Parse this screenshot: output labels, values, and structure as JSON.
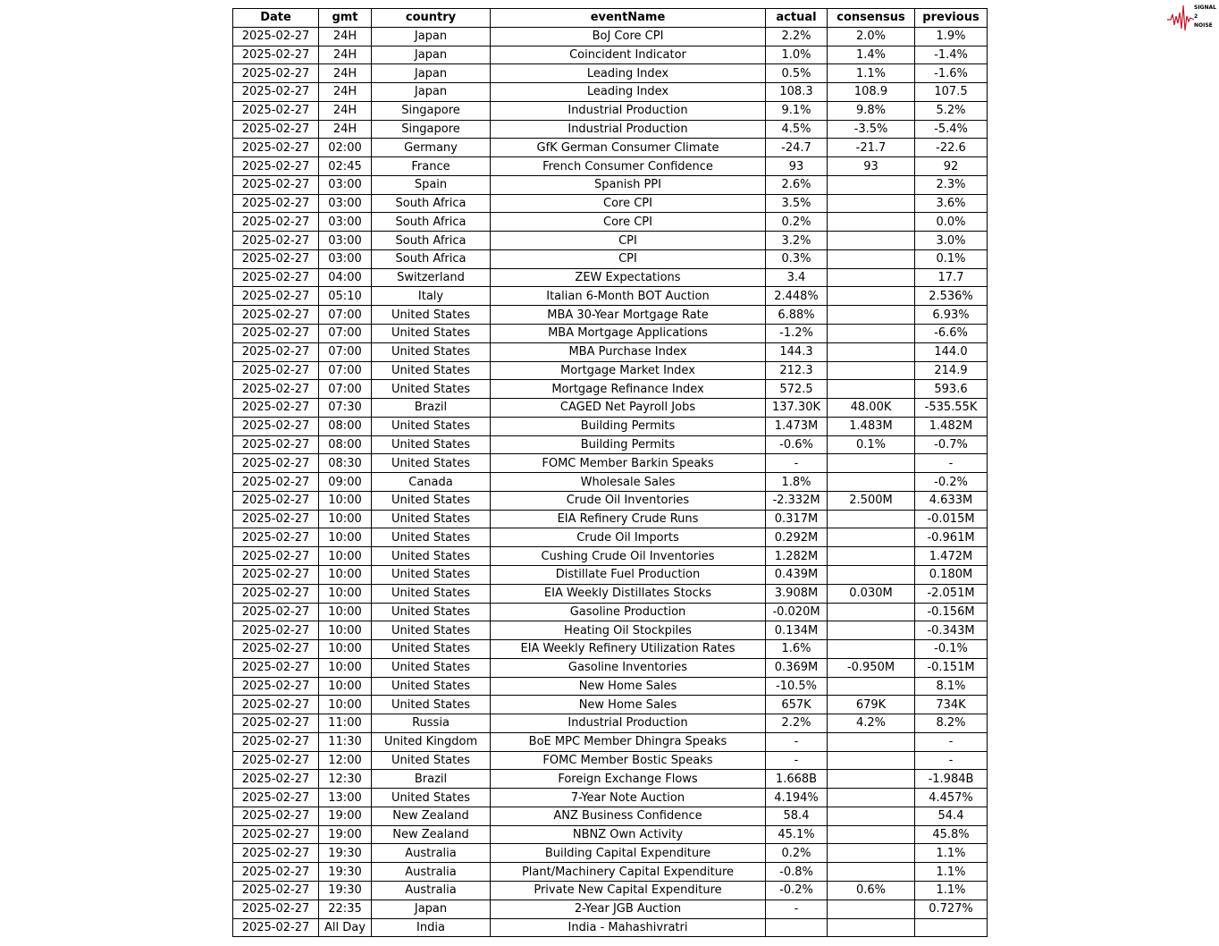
{
  "logo": {
    "text": "SIGNAL 2 NOISE",
    "color": "#c0182a"
  },
  "table": {
    "headers": [
      "Date",
      "gmt",
      "country",
      "eventName",
      "actual",
      "consensus",
      "previous"
    ],
    "rows": [
      [
        "2025-02-27",
        "24H",
        "Japan",
        "BoJ Core CPI",
        "2.2%",
        "2.0%",
        "1.9%"
      ],
      [
        "2025-02-27",
        "24H",
        "Japan",
        "Coincident Indicator",
        "1.0%",
        "1.4%",
        "-1.4%"
      ],
      [
        "2025-02-27",
        "24H",
        "Japan",
        "Leading Index",
        "0.5%",
        "1.1%",
        "-1.6%"
      ],
      [
        "2025-02-27",
        "24H",
        "Japan",
        "Leading Index",
        "108.3",
        "108.9",
        "107.5"
      ],
      [
        "2025-02-27",
        "24H",
        "Singapore",
        "Industrial Production",
        "9.1%",
        "9.8%",
        "5.2%"
      ],
      [
        "2025-02-27",
        "24H",
        "Singapore",
        "Industrial Production",
        "4.5%",
        "-3.5%",
        "-5.4%"
      ],
      [
        "2025-02-27",
        "02:00",
        "Germany",
        "GfK German Consumer Climate",
        "-24.7",
        "-21.7",
        "-22.6"
      ],
      [
        "2025-02-27",
        "02:45",
        "France",
        "French Consumer Confidence",
        "93",
        "93",
        "92"
      ],
      [
        "2025-02-27",
        "03:00",
        "Spain",
        "Spanish PPI",
        "2.6%",
        "",
        "2.3%"
      ],
      [
        "2025-02-27",
        "03:00",
        "South Africa",
        "Core CPI",
        "3.5%",
        "",
        "3.6%"
      ],
      [
        "2025-02-27",
        "03:00",
        "South Africa",
        "Core CPI",
        "0.2%",
        "",
        "0.0%"
      ],
      [
        "2025-02-27",
        "03:00",
        "South Africa",
        "CPI",
        "3.2%",
        "",
        "3.0%"
      ],
      [
        "2025-02-27",
        "03:00",
        "South Africa",
        "CPI",
        "0.3%",
        "",
        "0.1%"
      ],
      [
        "2025-02-27",
        "04:00",
        "Switzerland",
        "ZEW Expectations",
        "3.4",
        "",
        "17.7"
      ],
      [
        "2025-02-27",
        "05:10",
        "Italy",
        "Italian 6-Month BOT Auction",
        "2.448%",
        "",
        "2.536%"
      ],
      [
        "2025-02-27",
        "07:00",
        "United States",
        "MBA 30-Year Mortgage Rate",
        "6.88%",
        "",
        "6.93%"
      ],
      [
        "2025-02-27",
        "07:00",
        "United States",
        "MBA Mortgage Applications",
        "-1.2%",
        "",
        "-6.6%"
      ],
      [
        "2025-02-27",
        "07:00",
        "United States",
        "MBA Purchase Index",
        "144.3",
        "",
        "144.0"
      ],
      [
        "2025-02-27",
        "07:00",
        "United States",
        "Mortgage Market Index",
        "212.3",
        "",
        "214.9"
      ],
      [
        "2025-02-27",
        "07:00",
        "United States",
        "Mortgage Refinance Index",
        "572.5",
        "",
        "593.6"
      ],
      [
        "2025-02-27",
        "07:30",
        "Brazil",
        "CAGED Net Payroll Jobs",
        "137.30K",
        "48.00K",
        "-535.55K"
      ],
      [
        "2025-02-27",
        "08:00",
        "United States",
        "Building Permits",
        "1.473M",
        "1.483M",
        "1.482M"
      ],
      [
        "2025-02-27",
        "08:00",
        "United States",
        "Building Permits",
        "-0.6%",
        "0.1%",
        "-0.7%"
      ],
      [
        "2025-02-27",
        "08:30",
        "United States",
        "FOMC Member Barkin Speaks",
        "-",
        "",
        "-"
      ],
      [
        "2025-02-27",
        "09:00",
        "Canada",
        "Wholesale Sales",
        "1.8%",
        "",
        "-0.2%"
      ],
      [
        "2025-02-27",
        "10:00",
        "United States",
        "Crude Oil Inventories",
        "-2.332M",
        "2.500M",
        "4.633M"
      ],
      [
        "2025-02-27",
        "10:00",
        "United States",
        "EIA Refinery Crude Runs",
        "0.317M",
        "",
        "-0.015M"
      ],
      [
        "2025-02-27",
        "10:00",
        "United States",
        "Crude Oil Imports",
        "0.292M",
        "",
        "-0.961M"
      ],
      [
        "2025-02-27",
        "10:00",
        "United States",
        "Cushing Crude Oil Inventories",
        "1.282M",
        "",
        "1.472M"
      ],
      [
        "2025-02-27",
        "10:00",
        "United States",
        "Distillate Fuel Production",
        "0.439M",
        "",
        "0.180M"
      ],
      [
        "2025-02-27",
        "10:00",
        "United States",
        "EIA Weekly Distillates Stocks",
        "3.908M",
        "0.030M",
        "-2.051M"
      ],
      [
        "2025-02-27",
        "10:00",
        "United States",
        "Gasoline Production",
        "-0.020M",
        "",
        "-0.156M"
      ],
      [
        "2025-02-27",
        "10:00",
        "United States",
        "Heating Oil Stockpiles",
        "0.134M",
        "",
        "-0.343M"
      ],
      [
        "2025-02-27",
        "10:00",
        "United States",
        "EIA Weekly Refinery Utilization Rates",
        "1.6%",
        "",
        "-0.1%"
      ],
      [
        "2025-02-27",
        "10:00",
        "United States",
        "Gasoline Inventories",
        "0.369M",
        "-0.950M",
        "-0.151M"
      ],
      [
        "2025-02-27",
        "10:00",
        "United States",
        "New Home Sales",
        "-10.5%",
        "",
        "8.1%"
      ],
      [
        "2025-02-27",
        "10:00",
        "United States",
        "New Home Sales",
        "657K",
        "679K",
        "734K"
      ],
      [
        "2025-02-27",
        "11:00",
        "Russia",
        "Industrial Production",
        "2.2%",
        "4.2%",
        "8.2%"
      ],
      [
        "2025-02-27",
        "11:30",
        "United Kingdom",
        "BoE MPC Member Dhingra Speaks",
        "-",
        "",
        "-"
      ],
      [
        "2025-02-27",
        "12:00",
        "United States",
        "FOMC Member Bostic Speaks",
        "-",
        "",
        "-"
      ],
      [
        "2025-02-27",
        "12:30",
        "Brazil",
        "Foreign Exchange Flows",
        "1.668B",
        "",
        "-1.984B"
      ],
      [
        "2025-02-27",
        "13:00",
        "United States",
        "7-Year Note Auction",
        "4.194%",
        "",
        "4.457%"
      ],
      [
        "2025-02-27",
        "19:00",
        "New Zealand",
        "ANZ Business Confidence",
        "58.4",
        "",
        "54.4"
      ],
      [
        "2025-02-27",
        "19:00",
        "New Zealand",
        "NBNZ Own Activity",
        "45.1%",
        "",
        "45.8%"
      ],
      [
        "2025-02-27",
        "19:30",
        "Australia",
        "Building Capital Expenditure",
        "0.2%",
        "",
        "1.1%"
      ],
      [
        "2025-02-27",
        "19:30",
        "Australia",
        "Plant/Machinery Capital Expenditure",
        "-0.8%",
        "",
        "1.1%"
      ],
      [
        "2025-02-27",
        "19:30",
        "Australia",
        "Private New Capital Expenditure",
        "-0.2%",
        "0.6%",
        "1.1%"
      ],
      [
        "2025-02-27",
        "22:35",
        "Japan",
        "2-Year JGB Auction",
        "-",
        "",
        "0.727%"
      ],
      [
        "2025-02-27",
        "All Day",
        "India",
        "India - Mahashivratri",
        "",
        "",
        ""
      ]
    ]
  }
}
